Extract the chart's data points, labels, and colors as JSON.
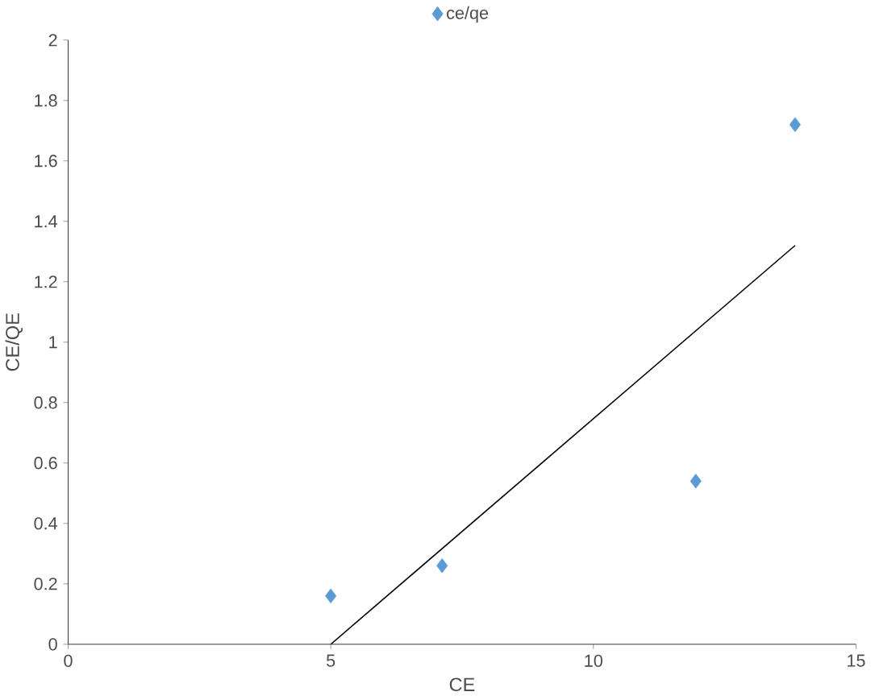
{
  "chart_data": {
    "type": "scatter",
    "xlabel": "CE",
    "ylabel": "CE/QE",
    "xlim": [
      0,
      15
    ],
    "ylim": [
      0,
      2
    ],
    "xticks": [
      0,
      5,
      10,
      15
    ],
    "yticks": [
      0,
      0.2,
      0.4,
      0.6,
      0.8,
      1,
      1.2,
      1.4,
      1.6,
      1.8,
      2
    ],
    "grid": false,
    "legend": "top",
    "series": [
      {
        "name": "ce/qe",
        "color": "#5b9bd5",
        "marker": "diamond",
        "x": [
          5.0,
          7.12,
          11.95,
          13.84
        ],
        "values": [
          0.16,
          0.26,
          0.54,
          1.72
        ]
      },
      {
        "type": "line",
        "marker": "none",
        "color": "#000000",
        "x": [
          5.0,
          13.84
        ],
        "values": [
          0,
          1.32
        ]
      }
    ]
  }
}
